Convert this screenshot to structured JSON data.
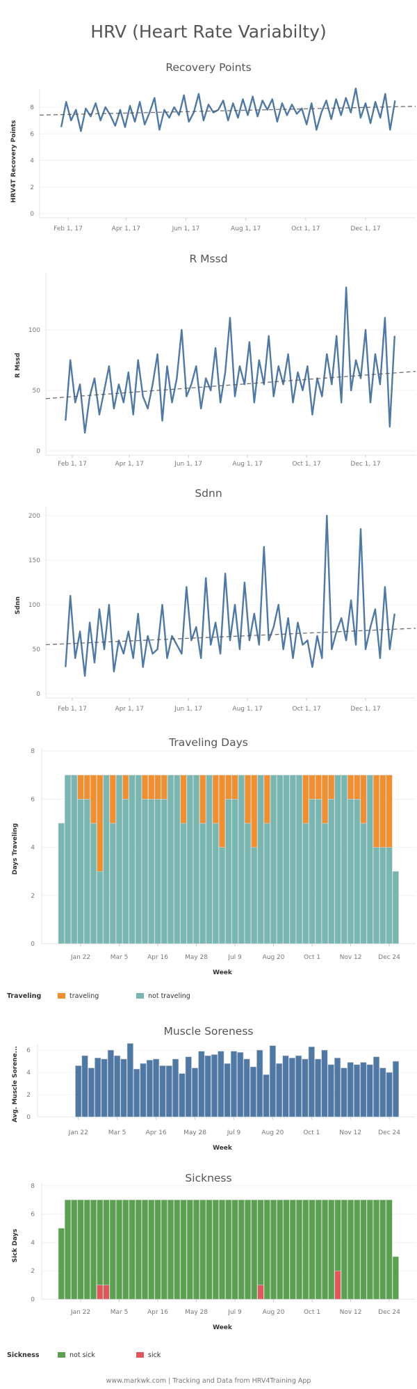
{
  "title": "HRV (Heart Rate Variabilty)",
  "footer": "www.markwk.com | Tracking and Data from HRV4Training App",
  "colors": {
    "line": "#4E79A7",
    "trend": "#555555",
    "traveling": "#F28E2B",
    "not_traveling": "#76B7B2",
    "not_sick": "#59A14F",
    "sick": "#E15759",
    "soreness": "#4E79A7"
  },
  "chart_data": [
    {
      "id": "recovery",
      "type": "line",
      "title": "Recovery Points",
      "ylabel": "HRV4T Recovery Points",
      "xlabel": "",
      "ylim": [
        0,
        9.5
      ],
      "yticks": [
        0,
        2,
        4,
        6,
        8
      ],
      "grid": true,
      "xticks": [
        {
          "date": "2017-02-01",
          "label": "Feb 1, 17"
        },
        {
          "date": "2017-04-01",
          "label": "Apr 1, 17"
        },
        {
          "date": "2017-06-01",
          "label": "Jun 1, 17"
        },
        {
          "date": "2017-08-01",
          "label": "Aug 1, 17"
        },
        {
          "date": "2017-10-01",
          "label": "Oct 1, 17"
        },
        {
          "date": "2017-12-01",
          "label": "Dec 1, 17"
        }
      ],
      "x": [
        "2017-01-25",
        "2017-01-30",
        "2017-02-04",
        "2017-02-09",
        "2017-02-14",
        "2017-02-19",
        "2017-02-24",
        "2017-03-01",
        "2017-03-06",
        "2017-03-11",
        "2017-03-16",
        "2017-03-21",
        "2017-03-26",
        "2017-03-31",
        "2017-04-05",
        "2017-04-10",
        "2017-04-15",
        "2017-04-20",
        "2017-04-25",
        "2017-04-30",
        "2017-05-05",
        "2017-05-10",
        "2017-05-15",
        "2017-05-20",
        "2017-05-25",
        "2017-05-30",
        "2017-06-04",
        "2017-06-09",
        "2017-06-14",
        "2017-06-19",
        "2017-06-24",
        "2017-06-29",
        "2017-07-04",
        "2017-07-09",
        "2017-07-14",
        "2017-07-19",
        "2017-07-24",
        "2017-07-29",
        "2017-08-03",
        "2017-08-08",
        "2017-08-13",
        "2017-08-18",
        "2017-08-23",
        "2017-08-28",
        "2017-09-02",
        "2017-09-07",
        "2017-09-12",
        "2017-09-17",
        "2017-09-22",
        "2017-09-27",
        "2017-10-02",
        "2017-10-07",
        "2017-10-12",
        "2017-10-17",
        "2017-10-22",
        "2017-10-27",
        "2017-11-01",
        "2017-11-06",
        "2017-11-11",
        "2017-11-16",
        "2017-11-21",
        "2017-11-26",
        "2017-12-01",
        "2017-12-06",
        "2017-12-11",
        "2017-12-16",
        "2017-12-21",
        "2017-12-26",
        "2017-12-31"
      ],
      "values": [
        6.5,
        8.4,
        7.0,
        7.8,
        6.2,
        7.9,
        7.3,
        8.3,
        7.0,
        8.0,
        7.4,
        6.6,
        7.8,
        6.5,
        8.1,
        6.9,
        8.4,
        6.7,
        7.6,
        8.7,
        6.3,
        7.8,
        7.2,
        8.0,
        7.4,
        8.9,
        6.9,
        7.6,
        9.0,
        7.0,
        8.2,
        7.6,
        7.8,
        8.5,
        7.0,
        8.3,
        7.2,
        8.6,
        7.4,
        8.8,
        7.3,
        8.5,
        7.8,
        8.6,
        6.9,
        8.3,
        7.4,
        8.2,
        7.5,
        7.9,
        6.7,
        8.3,
        6.3,
        7.6,
        8.5,
        7.1,
        8.6,
        7.4,
        8.7,
        7.6,
        9.4,
        7.2,
        8.3,
        6.8,
        8.4,
        7.2,
        9.0,
        6.3,
        8.5
      ],
      "trend": [
        [
          "2017-01-01",
          7.4
        ],
        [
          "2018-01-10",
          8.05
        ]
      ]
    },
    {
      "id": "rmssd",
      "type": "line",
      "title": "R Mssd",
      "ylabel": "R Mssd",
      "xlabel": "",
      "ylim": [
        0,
        140
      ],
      "yticks": [
        0,
        50,
        100
      ],
      "grid": true,
      "xticks": [
        {
          "date": "2017-02-01",
          "label": "Feb 1, 17"
        },
        {
          "date": "2017-04-01",
          "label": "Apr 1, 17"
        },
        {
          "date": "2017-06-01",
          "label": "Jun 1, 17"
        },
        {
          "date": "2017-08-01",
          "label": "Aug 1, 17"
        },
        {
          "date": "2017-10-01",
          "label": "Oct 1, 17"
        },
        {
          "date": "2017-12-01",
          "label": "Dec 1, 17"
        }
      ],
      "x": [
        "2017-01-25",
        "2017-01-30",
        "2017-02-04",
        "2017-02-09",
        "2017-02-14",
        "2017-02-19",
        "2017-02-24",
        "2017-03-01",
        "2017-03-06",
        "2017-03-11",
        "2017-03-16",
        "2017-03-21",
        "2017-03-26",
        "2017-03-31",
        "2017-04-05",
        "2017-04-10",
        "2017-04-15",
        "2017-04-20",
        "2017-04-25",
        "2017-04-30",
        "2017-05-05",
        "2017-05-10",
        "2017-05-15",
        "2017-05-20",
        "2017-05-25",
        "2017-05-30",
        "2017-06-04",
        "2017-06-09",
        "2017-06-14",
        "2017-06-19",
        "2017-06-24",
        "2017-06-29",
        "2017-07-04",
        "2017-07-09",
        "2017-07-14",
        "2017-07-19",
        "2017-07-24",
        "2017-07-29",
        "2017-08-03",
        "2017-08-08",
        "2017-08-13",
        "2017-08-18",
        "2017-08-23",
        "2017-08-28",
        "2017-09-02",
        "2017-09-07",
        "2017-09-12",
        "2017-09-17",
        "2017-09-22",
        "2017-09-27",
        "2017-10-02",
        "2017-10-07",
        "2017-10-12",
        "2017-10-17",
        "2017-10-22",
        "2017-10-27",
        "2017-11-01",
        "2017-11-06",
        "2017-11-11",
        "2017-11-16",
        "2017-11-21",
        "2017-11-26",
        "2017-12-01",
        "2017-12-06",
        "2017-12-11",
        "2017-12-16",
        "2017-12-21",
        "2017-12-26",
        "2017-12-31"
      ],
      "values": [
        25,
        75,
        40,
        55,
        15,
        45,
        60,
        30,
        50,
        70,
        35,
        55,
        40,
        65,
        30,
        75,
        45,
        35,
        55,
        80,
        25,
        70,
        40,
        60,
        100,
        45,
        55,
        70,
        35,
        60,
        50,
        85,
        40,
        65,
        110,
        45,
        70,
        55,
        90,
        40,
        75,
        55,
        95,
        45,
        70,
        55,
        80,
        40,
        65,
        50,
        70,
        30,
        60,
        45,
        80,
        55,
        95,
        40,
        135,
        50,
        75,
        60,
        100,
        40,
        80,
        55,
        110,
        20,
        95
      ],
      "trend": [
        [
          "2017-01-01",
          43
        ],
        [
          "2018-01-10",
          65
        ]
      ]
    },
    {
      "id": "sdnn",
      "type": "line",
      "title": "Sdnn",
      "ylabel": "Sdnn",
      "xlabel": "",
      "ylim": [
        0,
        215
      ],
      "yticks": [
        0,
        50,
        100,
        150,
        200
      ],
      "grid": true,
      "xticks": [
        {
          "date": "2017-02-01",
          "label": "Feb 1, 17"
        },
        {
          "date": "2017-04-01",
          "label": "Apr 1, 17"
        },
        {
          "date": "2017-06-01",
          "label": "Jun 1, 17"
        },
        {
          "date": "2017-08-01",
          "label": "Aug 1, 17"
        },
        {
          "date": "2017-10-01",
          "label": "Oct 1, 17"
        },
        {
          "date": "2017-12-01",
          "label": "Dec 1, 17"
        }
      ],
      "x": [
        "2017-01-25",
        "2017-01-30",
        "2017-02-04",
        "2017-02-09",
        "2017-02-14",
        "2017-02-19",
        "2017-02-24",
        "2017-03-01",
        "2017-03-06",
        "2017-03-11",
        "2017-03-16",
        "2017-03-21",
        "2017-03-26",
        "2017-03-31",
        "2017-04-05",
        "2017-04-10",
        "2017-04-15",
        "2017-04-20",
        "2017-04-25",
        "2017-04-30",
        "2017-05-05",
        "2017-05-10",
        "2017-05-15",
        "2017-05-20",
        "2017-05-25",
        "2017-05-30",
        "2017-06-04",
        "2017-06-09",
        "2017-06-14",
        "2017-06-19",
        "2017-06-24",
        "2017-06-29",
        "2017-07-04",
        "2017-07-09",
        "2017-07-14",
        "2017-07-19",
        "2017-07-24",
        "2017-07-29",
        "2017-08-03",
        "2017-08-08",
        "2017-08-13",
        "2017-08-18",
        "2017-08-23",
        "2017-08-28",
        "2017-09-02",
        "2017-09-07",
        "2017-09-12",
        "2017-09-17",
        "2017-09-22",
        "2017-09-27",
        "2017-10-02",
        "2017-10-07",
        "2017-10-12",
        "2017-10-17",
        "2017-10-22",
        "2017-10-27",
        "2017-11-01",
        "2017-11-06",
        "2017-11-11",
        "2017-11-16",
        "2017-11-21",
        "2017-11-26",
        "2017-12-01",
        "2017-12-06",
        "2017-12-11",
        "2017-12-16",
        "2017-12-21",
        "2017-12-26",
        "2017-12-31"
      ],
      "values": [
        30,
        110,
        40,
        70,
        20,
        80,
        35,
        95,
        50,
        100,
        25,
        60,
        45,
        70,
        40,
        90,
        30,
        65,
        45,
        50,
        100,
        40,
        65,
        55,
        45,
        120,
        60,
        75,
        40,
        130,
        55,
        80,
        45,
        135,
        60,
        100,
        50,
        125,
        60,
        90,
        55,
        165,
        60,
        75,
        100,
        50,
        85,
        40,
        80,
        55,
        60,
        30,
        65,
        40,
        200,
        50,
        70,
        85,
        60,
        105,
        55,
        185,
        50,
        75,
        95,
        40,
        120,
        50,
        90
      ],
      "trend": [
        [
          "2017-01-01",
          55
        ],
        [
          "2018-01-10",
          73
        ]
      ]
    },
    {
      "id": "traveling",
      "type": "bar",
      "stacked": true,
      "title": "Traveling Days",
      "ylabel": "Days Traveling",
      "xlabel": "Week",
      "ylim": [
        0,
        8
      ],
      "yticks": [
        0,
        2,
        4,
        6,
        8
      ],
      "grid": true,
      "weeks": [
        1,
        2,
        3,
        4,
        5,
        6,
        7,
        8,
        9,
        10,
        11,
        12,
        13,
        14,
        15,
        16,
        17,
        18,
        19,
        20,
        21,
        22,
        23,
        24,
        25,
        26,
        27,
        28,
        29,
        30,
        31,
        32,
        33,
        34,
        35,
        36,
        37,
        38,
        39,
        40,
        41,
        42,
        43,
        44,
        45,
        46,
        47,
        48,
        49,
        50,
        51,
        52,
        53
      ],
      "xticks": [
        {
          "week": 4,
          "label": "Jan 22"
        },
        {
          "week": 10,
          "label": "Mar 5"
        },
        {
          "week": 16,
          "label": "Apr 16"
        },
        {
          "week": 22,
          "label": "May 28"
        },
        {
          "week": 28,
          "label": "Jul 9"
        },
        {
          "week": 34,
          "label": "Aug 20"
        },
        {
          "week": 40,
          "label": "Oct 1"
        },
        {
          "week": 46,
          "label": "Nov 12"
        },
        {
          "week": 52,
          "label": "Dec 24"
        }
      ],
      "legend": {
        "title": "Traveling",
        "position": "bottom-left"
      },
      "series": [
        {
          "name": "not traveling",
          "color": "#76B7B2",
          "values": [
            5,
            7,
            7,
            6,
            6,
            5,
            3,
            7,
            5,
            7,
            6,
            7,
            7,
            6,
            6,
            6,
            6,
            7,
            7,
            5,
            7,
            7,
            5,
            7,
            5,
            4,
            6,
            6,
            7,
            5,
            4,
            7,
            5,
            7,
            7,
            7,
            7,
            7,
            5,
            6,
            6,
            5,
            6,
            7,
            7,
            6,
            6,
            5,
            7,
            4,
            4,
            4,
            3
          ]
        },
        {
          "name": "traveling",
          "color": "#F28E2B",
          "values": [
            0,
            0,
            0,
            1,
            1,
            2,
            4,
            0,
            2,
            0,
            1,
            0,
            0,
            1,
            1,
            1,
            1,
            0,
            0,
            2,
            0,
            0,
            2,
            0,
            2,
            3,
            1,
            1,
            0,
            2,
            3,
            0,
            2,
            0,
            0,
            0,
            0,
            0,
            2,
            1,
            1,
            2,
            1,
            0,
            0,
            1,
            1,
            2,
            0,
            3,
            3,
            3,
            0
          ]
        }
      ]
    },
    {
      "id": "soreness",
      "type": "bar",
      "title": "Muscle Soreness",
      "ylabel": "Avg. Muscle Sorene...",
      "xlabel": "Week",
      "ylim": [
        0,
        7
      ],
      "yticks": [
        0,
        2,
        4,
        6
      ],
      "grid": true,
      "weeks": [
        4,
        5,
        6,
        7,
        8,
        9,
        10,
        11,
        12,
        13,
        14,
        15,
        16,
        17,
        18,
        19,
        20,
        21,
        22,
        23,
        24,
        25,
        26,
        27,
        28,
        29,
        30,
        31,
        32,
        33,
        34,
        35,
        36,
        37,
        38,
        39,
        40,
        41,
        42,
        43,
        44,
        45,
        46,
        47,
        48,
        49,
        50,
        51,
        52,
        53
      ],
      "xticks": [
        {
          "week": 4,
          "label": "Jan 22"
        },
        {
          "week": 10,
          "label": "Mar 5"
        },
        {
          "week": 16,
          "label": "Apr 16"
        },
        {
          "week": 22,
          "label": "May 28"
        },
        {
          "week": 28,
          "label": "Jul 9"
        },
        {
          "week": 34,
          "label": "Aug 20"
        },
        {
          "week": 40,
          "label": "Oct 1"
        },
        {
          "week": 46,
          "label": "Nov 12"
        },
        {
          "week": 52,
          "label": "Dec 24"
        }
      ],
      "values": [
        4.6,
        5.5,
        4.4,
        5.3,
        5.2,
        6.0,
        5.5,
        5.2,
        6.6,
        4.3,
        4.8,
        5.1,
        5.2,
        4.6,
        4.6,
        5.2,
        3.9,
        5.4,
        4.4,
        5.9,
        5.5,
        5.6,
        5.9,
        4.8,
        5.9,
        5.8,
        5.2,
        4.5,
        6.0,
        3.8,
        6.4,
        4.8,
        5.5,
        5.3,
        5.5,
        5.2,
        6.3,
        5.2,
        6.0,
        4.7,
        5.3,
        4.4,
        4.9,
        4.7,
        4.9,
        4.7,
        5.4,
        4.4,
        4.0,
        5.0
      ]
    },
    {
      "id": "sickness",
      "type": "bar",
      "stacked": true,
      "title": "Sickness",
      "ylabel": "Sick Days",
      "xlabel": "Week",
      "ylim": [
        0,
        8
      ],
      "yticks": [
        0,
        2,
        4,
        6,
        8
      ],
      "grid": true,
      "weeks": [
        1,
        2,
        3,
        4,
        5,
        6,
        7,
        8,
        9,
        10,
        11,
        12,
        13,
        14,
        15,
        16,
        17,
        18,
        19,
        20,
        21,
        22,
        23,
        24,
        25,
        26,
        27,
        28,
        29,
        30,
        31,
        32,
        33,
        34,
        35,
        36,
        37,
        38,
        39,
        40,
        41,
        42,
        43,
        44,
        45,
        46,
        47,
        48,
        49,
        50,
        51,
        52,
        53
      ],
      "xticks": [
        {
          "week": 4,
          "label": "Jan 22"
        },
        {
          "week": 10,
          "label": "Mar 5"
        },
        {
          "week": 16,
          "label": "Apr 16"
        },
        {
          "week": 22,
          "label": "May 28"
        },
        {
          "week": 28,
          "label": "Jul 9"
        },
        {
          "week": 34,
          "label": "Aug 20"
        },
        {
          "week": 40,
          "label": "Oct 1"
        },
        {
          "week": 46,
          "label": "Nov 12"
        },
        {
          "week": 52,
          "label": "Dec 24"
        }
      ],
      "legend": {
        "title": "Sickness",
        "position": "bottom-left"
      },
      "series": [
        {
          "name": "sick",
          "color": "#E15759",
          "values": [
            0,
            0,
            0,
            0,
            0,
            0,
            1,
            1,
            0,
            0,
            0,
            0,
            0,
            0,
            0,
            0,
            0,
            0,
            0,
            0,
            0,
            0,
            0,
            0,
            0,
            0,
            0,
            0,
            0,
            0,
            0,
            1,
            0,
            0,
            0,
            0,
            0,
            0,
            0,
            0,
            0,
            0,
            0,
            2,
            0,
            0,
            0,
            0,
            0,
            0,
            0,
            0,
            0
          ]
        },
        {
          "name": "not sick",
          "color": "#59A14F",
          "values": [
            5,
            7,
            7,
            7,
            7,
            7,
            6,
            6,
            7,
            7,
            7,
            7,
            7,
            7,
            7,
            7,
            7,
            7,
            7,
            7,
            7,
            7,
            7,
            7,
            7,
            7,
            7,
            7,
            7,
            7,
            7,
            6,
            7,
            7,
            7,
            7,
            7,
            7,
            7,
            7,
            7,
            7,
            7,
            5,
            7,
            7,
            7,
            7,
            7,
            7,
            7,
            7,
            3
          ]
        }
      ]
    }
  ]
}
